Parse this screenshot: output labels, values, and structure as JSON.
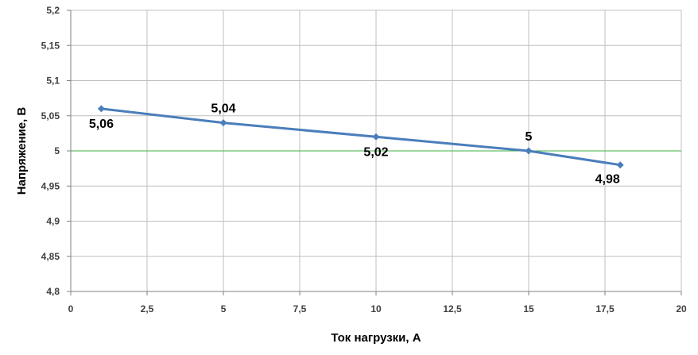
{
  "chart_data": {
    "type": "line",
    "xlabel": "Ток нагрузки, А",
    "ylabel": "Напряжение, В",
    "xlim": [
      0,
      20
    ],
    "ylim": [
      4.8,
      5.2
    ],
    "x_ticks": [
      "0",
      "2,5",
      "5",
      "7,5",
      "10",
      "12,5",
      "15",
      "17,5",
      "20"
    ],
    "y_ticks": [
      "4,8",
      "4,85",
      "4,9",
      "4,95",
      "5",
      "5,05",
      "5,1",
      "5,15",
      "5,2"
    ],
    "grid": true,
    "reference_line": {
      "y": 5.0,
      "color": "#3cb043"
    },
    "series": [
      {
        "color": "#4a7ebb",
        "points": [
          {
            "x": 1,
            "y": 5.06,
            "label": "5,06"
          },
          {
            "x": 5,
            "y": 5.04,
            "label": "5,04"
          },
          {
            "x": 10,
            "y": 5.02,
            "label": "5,02"
          },
          {
            "x": 15,
            "y": 5.0,
            "label": "5"
          },
          {
            "x": 18,
            "y": 4.98,
            "label": "4,98"
          }
        ]
      }
    ]
  }
}
